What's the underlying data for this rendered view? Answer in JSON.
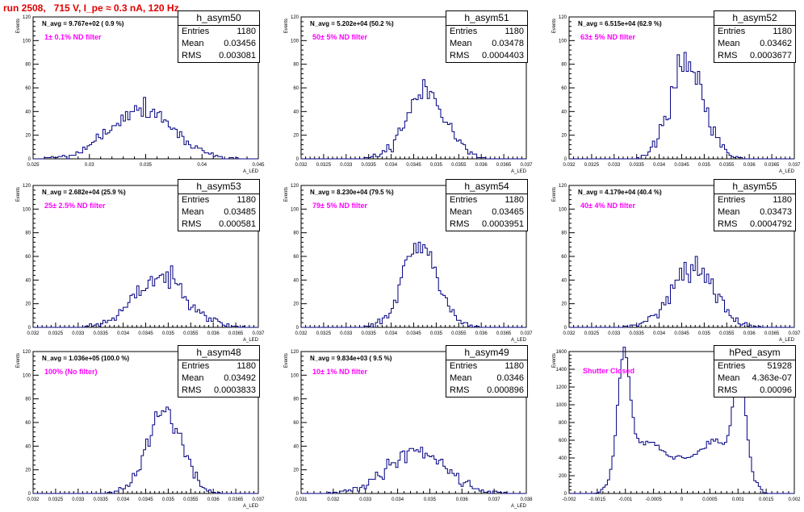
{
  "title": "run 2508,   715 V, I_pe ≈ 0.3 nA, 120 Hz",
  "colors": {
    "histogram": "#000080",
    "title": "#e00000",
    "annotation": "#ff00ff"
  },
  "stats_labels": {
    "entries": "Entries",
    "mean": "Mean",
    "rms": "RMS"
  },
  "chart_data": [
    {
      "type": "histogram",
      "name": "h_asym50",
      "navg": "N_avg = 9.767e+02 ( 0.9 %)",
      "filter": "1± 0.1% ND filter",
      "stats": {
        "entries": "1180",
        "mean": "0.03456",
        "rms": "0.003081"
      },
      "ylabel": "Events",
      "xlabel": "A_LED",
      "xlim": [
        0.024,
        0.046
      ],
      "ylim": [
        0,
        120
      ],
      "xticks": [
        "0.025",
        "0.03",
        "0.035",
        "0.04",
        "0.045"
      ],
      "yticks": [
        "0",
        "20",
        "40",
        "60",
        "80",
        "100",
        "120"
      ],
      "mean": 0.03456,
      "sigma": 0.003081,
      "peak": 43,
      "seed": 5
    },
    {
      "type": "histogram",
      "name": "h_asym51",
      "navg": "N_avg = 5.202e+04 (50.2 %)",
      "filter": "50± 5% ND filter",
      "stats": {
        "entries": "1180",
        "mean": "0.03478",
        "rms": "0.0004403"
      },
      "ylabel": "Events",
      "xlabel": "A_LED",
      "xlim": [
        0.032,
        0.037
      ],
      "ylim": [
        0,
        120
      ],
      "xticks": [
        "0.032",
        "0.0325",
        "0.033",
        "0.0335",
        "0.034",
        "0.0345",
        "0.035",
        "0.0355",
        "0.036",
        "0.0365",
        "0.037"
      ],
      "yticks": [
        "0",
        "20",
        "40",
        "60",
        "80",
        "100",
        "120"
      ],
      "mean": 0.03478,
      "sigma": 0.0004403,
      "peak": 57,
      "seed": 11
    },
    {
      "type": "histogram",
      "name": "h_asym52",
      "navg": "N_avg = 6.515e+04 (62.9 %)",
      "filter": "63± 5% ND filter",
      "stats": {
        "entries": "1180",
        "mean": "0.03462",
        "rms": "0.0003677"
      },
      "ylabel": "Events",
      "xlabel": "A_LED",
      "xlim": [
        0.032,
        0.037
      ],
      "ylim": [
        0,
        120
      ],
      "xticks": [
        "0.032",
        "0.0325",
        "0.033",
        "0.0335",
        "0.034",
        "0.0345",
        "0.035",
        "0.0355",
        "0.036",
        "0.0365",
        "0.037"
      ],
      "yticks": [
        "0",
        "20",
        "40",
        "60",
        "80",
        "100",
        "120"
      ],
      "mean": 0.03462,
      "sigma": 0.0003677,
      "peak": 84,
      "seed": 17
    },
    {
      "type": "histogram",
      "name": "h_asym53",
      "navg": "N_avg = 2.682e+04 (25.9 %)",
      "filter": "25± 2.5% ND filter",
      "stats": {
        "entries": "1180",
        "mean": "0.03485",
        "rms": "0.000581"
      },
      "ylabel": "Events",
      "xlabel": "A_LED",
      "xlim": [
        0.032,
        0.037
      ],
      "ylim": [
        0,
        120
      ],
      "xticks": [
        "0.032",
        "0.0325",
        "0.033",
        "0.0335",
        "0.034",
        "0.0345",
        "0.035",
        "0.0355",
        "0.036",
        "0.0365",
        "0.037"
      ],
      "yticks": [
        "0",
        "20",
        "40",
        "60",
        "80",
        "100",
        "120"
      ],
      "mean": 0.03485,
      "sigma": 0.000581,
      "peak": 43,
      "seed": 23
    },
    {
      "type": "histogram",
      "name": "h_asym54",
      "navg": "N_avg = 8.230e+04 (79.5 %)",
      "filter": "79± 5% ND filter",
      "stats": {
        "entries": "1180",
        "mean": "0.03465",
        "rms": "0.0003951"
      },
      "ylabel": "Events",
      "xlabel": "A_LED",
      "xlim": [
        0.032,
        0.037
      ],
      "ylim": [
        0,
        120
      ],
      "xticks": [
        "0.032",
        "0.0325",
        "0.033",
        "0.0335",
        "0.034",
        "0.0345",
        "0.035",
        "0.0355",
        "0.036",
        "0.0365",
        "0.037"
      ],
      "yticks": [
        "0",
        "20",
        "40",
        "60",
        "80",
        "100",
        "120"
      ],
      "mean": 0.03465,
      "sigma": 0.0003951,
      "peak": 67,
      "seed": 29
    },
    {
      "type": "histogram",
      "name": "h_asym55",
      "navg": "N_avg = 4.179e+04 (40.4 %)",
      "filter": "40± 4% ND filter",
      "stats": {
        "entries": "1180",
        "mean": "0.03473",
        "rms": "0.0004792"
      },
      "ylabel": "Events",
      "xlabel": "A_LED",
      "xlim": [
        0.032,
        0.037
      ],
      "ylim": [
        0,
        120
      ],
      "xticks": [
        "0.032",
        "0.0325",
        "0.033",
        "0.0335",
        "0.034",
        "0.0345",
        "0.035",
        "0.0355",
        "0.036",
        "0.0365",
        "0.037"
      ],
      "yticks": [
        "0",
        "20",
        "40",
        "60",
        "80",
        "100",
        "120"
      ],
      "mean": 0.03473,
      "sigma": 0.0004792,
      "peak": 51,
      "seed": 31
    },
    {
      "type": "histogram",
      "name": "h_asym48",
      "navg": "N_avg = 1.036e+05 (100.0 %)",
      "filter": "100% (No filter)",
      "stats": {
        "entries": "1180",
        "mean": "0.03492",
        "rms": "0.0003833"
      },
      "ylabel": "Events",
      "xlabel": "A_LED",
      "xlim": [
        0.032,
        0.037
      ],
      "ylim": [
        0,
        120
      ],
      "xticks": [
        "0.032",
        "0.0325",
        "0.033",
        "0.0335",
        "0.034",
        "0.0345",
        "0.035",
        "0.0355",
        "0.036",
        "0.0365",
        "0.037"
      ],
      "yticks": [
        "0",
        "20",
        "40",
        "60",
        "80",
        "100",
        "120"
      ],
      "mean": 0.03492,
      "sigma": 0.0003833,
      "peak": 70,
      "seed": 37
    },
    {
      "type": "histogram",
      "name": "h_asym49",
      "navg": "N_avg = 9.834e+03 ( 9.5 %)",
      "filter": "10± 1% ND filter",
      "stats": {
        "entries": "1180",
        "mean": "0.0346",
        "rms": "0.000896"
      },
      "ylabel": "Events",
      "xlabel": "A_LED",
      "xlim": [
        0.031,
        0.038
      ],
      "ylim": [
        0,
        120
      ],
      "xticks": [
        "0.031",
        "0.032",
        "0.033",
        "0.034",
        "0.035",
        "0.036",
        "0.037",
        "0.038"
      ],
      "yticks": [
        "0",
        "20",
        "40",
        "60",
        "80",
        "100",
        "120"
      ],
      "mean": 0.0346,
      "sigma": 0.000896,
      "peak": 37,
      "seed": 41
    },
    {
      "type": "histogram",
      "name": "hPed_asym",
      "navg": "",
      "filter": "Shutter Closed",
      "stats": {
        "entries": "51928",
        "mean": "4.363e-07",
        "rms": "0.00096"
      },
      "ylabel": "Events",
      "xlabel": "",
      "xlim": [
        -0.002,
        0.002
      ],
      "ylim": [
        0,
        1600
      ],
      "xticks": [
        "-0.002",
        "-0.0015",
        "-0.001",
        "-0.0005",
        "0",
        "0.0005",
        "0.001",
        "0.0015",
        "0.002"
      ],
      "yticks": [
        "0",
        "200",
        "400",
        "600",
        "800",
        "1000",
        "1200",
        "1400",
        "1600"
      ],
      "bimodal": true,
      "seed": 47
    }
  ]
}
